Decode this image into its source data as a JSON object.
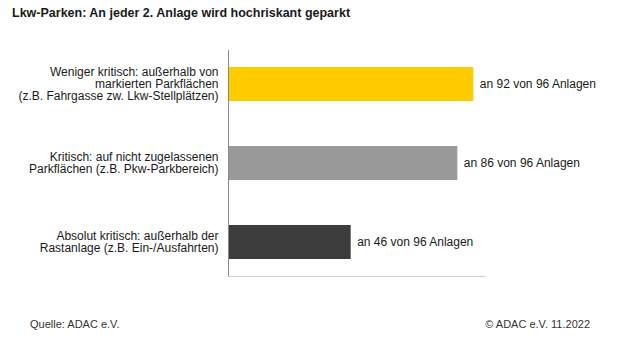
{
  "chart_data": {
    "type": "bar",
    "orientation": "horizontal",
    "title": "Lkw-Parken: An jeder 2. Anlage wird hochriskant geparkt",
    "categories": [
      "Weniger kritisch: außerhalb von\nmarkierten Parkflächen\n(z.B. Fahrgasse zw. Lkw-Stellplätzen)",
      "Kritisch: auf nicht zugelassenen\nParkflächen (z.B. Pkw-Parkbereich)",
      "Absolut kritisch: außerhalb der\nRastanlage (z.B. Ein-/Ausfahrten)"
    ],
    "values": [
      92,
      86,
      46
    ],
    "value_labels": [
      "an 92 von 96 Anlagen",
      "an 86 von 96 Anlagen",
      "an 46 von 96 Anlagen"
    ],
    "colors": [
      "#ffcc00",
      "#999999",
      "#3c3c3c"
    ],
    "xlim": [
      0,
      96
    ],
    "data_labels": true,
    "tick_labels": "y",
    "grid": false,
    "source": "Quelle: ADAC e.V.",
    "copyright": "© ADAC e.V. 11.2022"
  }
}
